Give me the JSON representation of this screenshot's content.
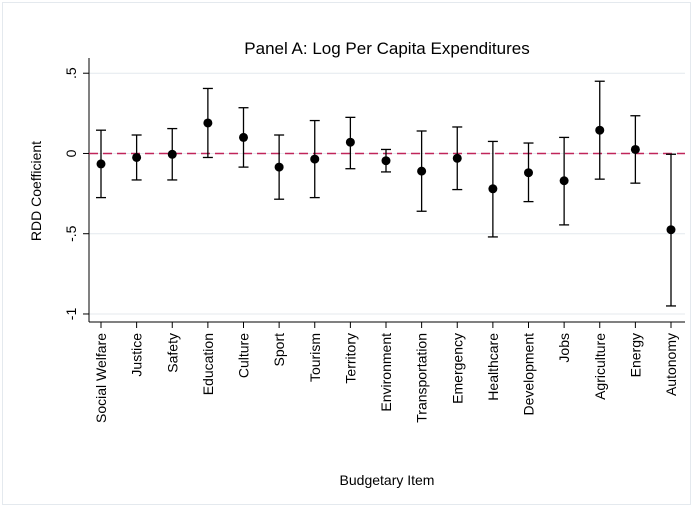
{
  "chart_data": {
    "type": "scatter",
    "subtype": "coefficient-plot-with-confidence-intervals",
    "title": "Panel A: Log Per Capita Expenditures",
    "xlabel": "Budgetary Item",
    "ylabel": "RDD Coefficient",
    "ylim": [
      -1.05,
      0.52
    ],
    "yticks": [
      {
        "value": 0.5,
        "label": ".5"
      },
      {
        "value": 0,
        "label": "0"
      },
      {
        "value": -0.5,
        "label": "-.5"
      },
      {
        "value": -1,
        "label": "-1"
      }
    ],
    "reference_line": {
      "y": 0,
      "style": "dashed",
      "color": "#c0255a"
    },
    "categories": [
      "Social Welfare",
      "Justice",
      "Safety",
      "Education",
      "Culture",
      "Sport",
      "Tourism",
      "Territory",
      "Environment",
      "Transportation",
      "Emergency",
      "Healthcare",
      "Development",
      "Jobs",
      "Agriculture",
      "Energy",
      "Autonomy"
    ],
    "points": [
      {
        "category": "Social Welfare",
        "estimate": -0.065,
        "ci_low": -0.275,
        "ci_high": 0.145
      },
      {
        "category": "Justice",
        "estimate": -0.025,
        "ci_low": -0.165,
        "ci_high": 0.115
      },
      {
        "category": "Safety",
        "estimate": -0.005,
        "ci_low": -0.165,
        "ci_high": 0.155
      },
      {
        "category": "Education",
        "estimate": 0.19,
        "ci_low": -0.025,
        "ci_high": 0.405
      },
      {
        "category": "Culture",
        "estimate": 0.1,
        "ci_low": -0.085,
        "ci_high": 0.285
      },
      {
        "category": "Sport",
        "estimate": -0.085,
        "ci_low": -0.285,
        "ci_high": 0.115
      },
      {
        "category": "Tourism",
        "estimate": -0.035,
        "ci_low": -0.275,
        "ci_high": 0.205
      },
      {
        "category": "Territory",
        "estimate": 0.07,
        "ci_low": -0.095,
        "ci_high": 0.225
      },
      {
        "category": "Environment",
        "estimate": -0.045,
        "ci_low": -0.115,
        "ci_high": 0.025
      },
      {
        "category": "Transportation",
        "estimate": -0.11,
        "ci_low": -0.36,
        "ci_high": 0.14
      },
      {
        "category": "Emergency",
        "estimate": -0.03,
        "ci_low": -0.225,
        "ci_high": 0.165
      },
      {
        "category": "Healthcare",
        "estimate": -0.22,
        "ci_low": -0.52,
        "ci_high": 0.075
      },
      {
        "category": "Development",
        "estimate": -0.12,
        "ci_low": -0.3,
        "ci_high": 0.065
      },
      {
        "category": "Jobs",
        "estimate": -0.17,
        "ci_low": -0.445,
        "ci_high": 0.1
      },
      {
        "category": "Agriculture",
        "estimate": 0.145,
        "ci_low": -0.16,
        "ci_high": 0.45
      },
      {
        "category": "Energy",
        "estimate": 0.025,
        "ci_low": -0.185,
        "ci_high": 0.235
      },
      {
        "category": "Autonomy",
        "estimate": -0.475,
        "ci_low": -0.95,
        "ci_high": -0.005
      }
    ],
    "grid": "horizontal",
    "legend": "none",
    "colors": {
      "marker": "#000000",
      "ci": "#000000",
      "reference": "#c0255a",
      "grid": "#e4e9ee"
    }
  }
}
